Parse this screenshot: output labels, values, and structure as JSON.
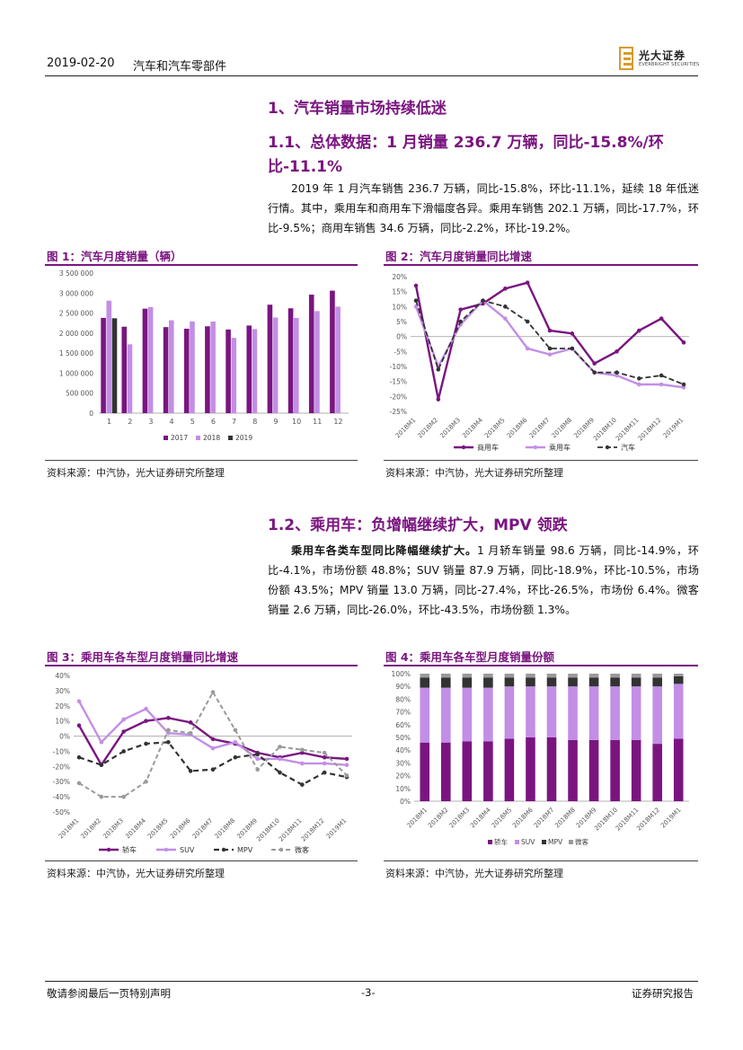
{
  "header": {
    "date": "2019-02-20",
    "sector": "汽车和汽车零部件",
    "logo_cn": "光大证券",
    "logo_en": "EVERBRIGHT SECURITIES"
  },
  "section1": {
    "title": "1、汽车销量市场持续低迷",
    "sub_title": "1.1、总体数据：1 月销量 236.7 万辆，同比-15.8%/环比-11.1%",
    "paragraph": "2019 年 1 月汽车销售 236.7 万辆，同比-15.8%，环比-11.1%，延续 18 年低迷行情。其中，乘用车和商用车下滑幅度各异。乘用车销售 202.1 万辆，同比-17.7%，环比-9.5%；商用车销售 34.6 万辆，同比-2.2%，环比-19.2%。"
  },
  "section2": {
    "sub_title": "1.2、乘用车：负增幅继续扩大，MPV 领跌",
    "lead": "乘用车各类车型同比降幅继续扩大。",
    "paragraph": "1 月轿车销量 98.6 万辆，同比-14.9%，环比-4.1%，市场份额 48.8%；SUV 销量 87.9 万辆，同比-18.9%，环比-10.5%，市场份额 43.5%；MPV 销量 13.0 万辆，同比-27.4%，环比-26.5%，市场份 6.4%。微客销量 2.6 万辆，同比-26.0%，环比-43.5%，市场份额 1.3%。"
  },
  "figures": {
    "fig1_title": "图 1：汽车月度销量（辆）",
    "fig2_title": "图 2：汽车月度销量同比增速",
    "fig3_title": "图 3：乘用车各车型月度销量同比增速",
    "fig4_title": "图 4：乘用车各车型月度销量份额",
    "source": "资料来源：中汽协，光大证券研究所整理"
  },
  "footer": {
    "disclaimer": "敬请参阅最后一页特别声明",
    "page": "-3-",
    "report_type": "证券研究报告"
  },
  "colors": {
    "accent": "#7a1580",
    "purple": "#7a1580",
    "lilac": "#c38ee6",
    "dark": "#333333",
    "gray": "#9a9a9a"
  },
  "chart_data": [
    {
      "type": "bar",
      "title": "图 1：汽车月度销量（辆）",
      "categories": [
        "1",
        "2",
        "3",
        "4",
        "5",
        "6",
        "7",
        "8",
        "9",
        "10",
        "11",
        "12"
      ],
      "y_ticks": [
        "0",
        "500 000",
        "1 000 000",
        "1 500 000",
        "2 000 000",
        "2 500 000",
        "3 000 000",
        "3 500 000"
      ],
      "ylim": [
        0,
        3500000
      ],
      "series": [
        {
          "name": "2017",
          "color": "#7a1580",
          "values": [
            2380000,
            2160000,
            2610000,
            2150000,
            2110000,
            2170000,
            2090000,
            2190000,
            2710000,
            2620000,
            2960000,
            3060000
          ]
        },
        {
          "name": "2018",
          "color": "#c38ee6",
          "values": [
            2810000,
            1720000,
            2650000,
            2320000,
            2290000,
            2290000,
            1880000,
            2100000,
            2390000,
            2380000,
            2550000,
            2660000
          ]
        },
        {
          "name": "2019",
          "color": "#333333",
          "values": [
            2370000,
            null,
            null,
            null,
            null,
            null,
            null,
            null,
            null,
            null,
            null,
            null
          ]
        }
      ]
    },
    {
      "type": "line",
      "title": "图 2：汽车月度销量同比增速",
      "categories": [
        "2018M1",
        "2018M2",
        "2018M3",
        "2018M4",
        "2018M5",
        "2018M6",
        "2018M7",
        "2018M8",
        "2018M9",
        "2018M10",
        "2018M11",
        "2018M12",
        "2019M1"
      ],
      "y_ticks": [
        "20%",
        "15%",
        "10%",
        "5%",
        "0%",
        "-5%",
        "-10%",
        "-15%",
        "-20%",
        "-25%"
      ],
      "ylim": [
        -25,
        20
      ],
      "series": [
        {
          "name": "商用车",
          "color": "#7a1580",
          "values": [
            17,
            -21,
            9,
            11,
            16,
            18,
            2,
            1,
            -9,
            -5,
            2,
            6,
            -2
          ]
        },
        {
          "name": "乘用车",
          "color": "#c38ee6",
          "values": [
            10,
            -10,
            4,
            12,
            6,
            -4,
            -6,
            -4,
            -12,
            -13,
            -16,
            -16,
            -17
          ]
        },
        {
          "name": "汽车",
          "color": "#333333",
          "values": [
            12,
            -11,
            5,
            12,
            10,
            5,
            -4,
            -4,
            -12,
            -12,
            -14,
            -13,
            -16
          ]
        }
      ]
    },
    {
      "type": "line",
      "title": "图 3：乘用车各车型月度销量同比增速",
      "categories": [
        "2018M1",
        "2018M2",
        "2018M3",
        "2018M4",
        "2018M5",
        "2018M6",
        "2018M7",
        "2018M8",
        "2018M9",
        "2018M10",
        "2018M11",
        "2018M12",
        "2019M1"
      ],
      "y_ticks": [
        "40%",
        "30%",
        "20%",
        "10%",
        "0%",
        "-10%",
        "-20%",
        "-30%",
        "-40%",
        "-50%"
      ],
      "ylim": [
        -50,
        40
      ],
      "series": [
        {
          "name": "轿车",
          "color": "#7a1580",
          "values": [
            7,
            -19,
            3,
            10,
            12,
            9,
            -2,
            -5,
            -11,
            -14,
            -11,
            -14,
            -15
          ]
        },
        {
          "name": "SUV",
          "color": "#c38ee6",
          "values": [
            23,
            -4,
            11,
            18,
            2,
            1,
            -8,
            -4,
            -15,
            -15,
            -18,
            -18,
            -19
          ]
        },
        {
          "name": "MPV",
          "color": "#333333",
          "values": [
            -14,
            -19,
            -10,
            -5,
            -4,
            -23,
            -22,
            -14,
            -12,
            -24,
            -32,
            -24,
            -27
          ]
        },
        {
          "name": "微客",
          "color": "#9a9a9a",
          "values": [
            -31,
            -40,
            -40,
            -30,
            4,
            2,
            29,
            4,
            -22,
            -7,
            -9,
            -11,
            -26
          ]
        }
      ]
    },
    {
      "type": "bar",
      "stacked": true,
      "title": "图 4：乘用车各车型月度销量份额",
      "categories": [
        "2018M1",
        "2018M2",
        "2018M3",
        "2018M4",
        "2018M5",
        "2018M6",
        "2018M7",
        "2018M8",
        "2018M9",
        "2018M10",
        "2018M11",
        "2018M12",
        "2019M1"
      ],
      "y_ticks": [
        "0%",
        "10%",
        "20%",
        "30%",
        "40%",
        "50%",
        "60%",
        "70%",
        "80%",
        "90%",
        "100%"
      ],
      "ylim": [
        0,
        100
      ],
      "series": [
        {
          "name": "轿车",
          "color": "#7a1580",
          "values": [
            46,
            46,
            47,
            47,
            49,
            50,
            50,
            48,
            48,
            48,
            48,
            45,
            49
          ]
        },
        {
          "name": "SUV",
          "color": "#c38ee6",
          "values": [
            43,
            43,
            42,
            42,
            41,
            40,
            40,
            42,
            42,
            42,
            42,
            45,
            43
          ]
        },
        {
          "name": "MPV",
          "color": "#333333",
          "values": [
            8,
            8,
            8,
            8,
            7,
            7,
            7,
            7,
            7,
            7,
            7,
            7,
            6
          ]
        },
        {
          "name": "微客",
          "color": "#9a9a9a",
          "values": [
            3,
            3,
            3,
            3,
            3,
            3,
            3,
            3,
            3,
            3,
            3,
            3,
            2
          ]
        }
      ]
    }
  ]
}
